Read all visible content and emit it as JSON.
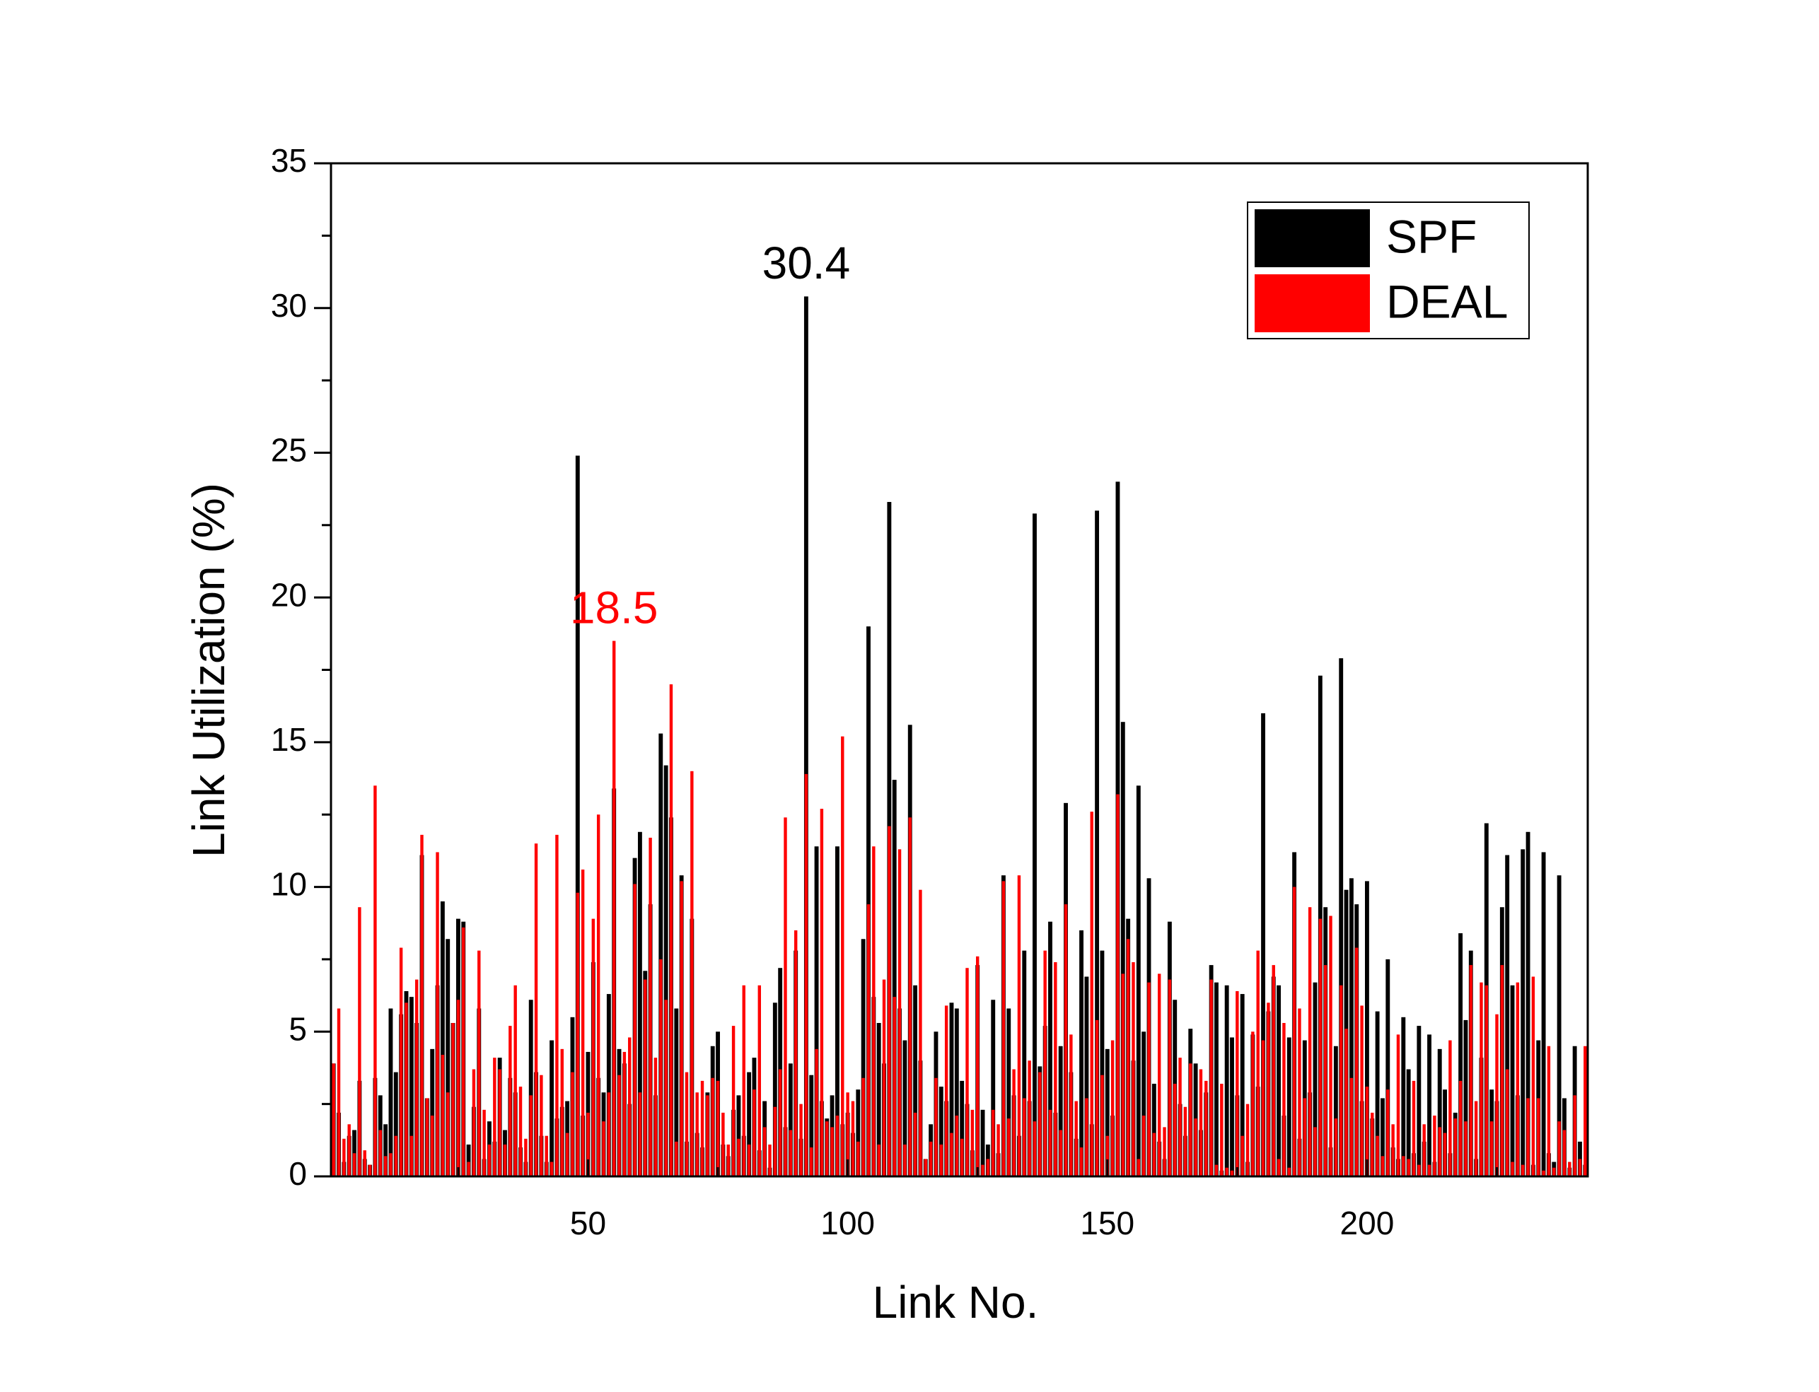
{
  "chart_data": {
    "type": "bar",
    "x_label": "Link No.",
    "y_label": "Link Utilization (%)",
    "xlim": [
      0.5,
      242.5
    ],
    "xticks": [
      50,
      100,
      150,
      200
    ],
    "ylim": [
      0,
      35
    ],
    "yticks": [
      0,
      5,
      10,
      15,
      20,
      25,
      30,
      35
    ],
    "legend": "upper right",
    "series": [
      {
        "name": "SPF",
        "color": "#000000",
        "values": [
          3.9,
          2.2,
          0.5,
          1.4,
          1.6,
          3.3,
          0.6,
          0.4,
          3.4,
          2.8,
          1.8,
          5.8,
          3.6,
          5.6,
          6.4,
          6.2,
          5.3,
          11.1,
          2.7,
          4.4,
          6.6,
          9.5,
          8.2,
          5.3,
          8.9,
          8.8,
          1.1,
          2.4,
          5.8,
          0.6,
          1.9,
          1.2,
          4.1,
          1.6,
          3.4,
          2.9,
          1.0,
          0.5,
          6.1,
          3.6,
          1.4,
          0.5,
          4.7,
          2.0,
          2.4,
          2.6,
          5.5,
          24.9,
          2.1,
          4.3,
          7.4,
          3.4,
          2.9,
          6.3,
          13.4,
          4.4,
          3.9,
          2.5,
          11.0,
          11.9,
          7.1,
          9.4,
          2.8,
          15.3,
          14.2,
          12.4,
          5.8,
          10.4,
          1.2,
          8.9,
          1.5,
          1.0,
          2.9,
          4.5,
          5.0,
          1.1,
          0.7,
          2.3,
          2.8,
          1.4,
          3.6,
          4.1,
          0.9,
          2.6,
          0.3,
          6.0,
          7.2,
          1.7,
          3.9,
          7.8,
          1.3,
          30.4,
          3.5,
          11.4,
          2.6,
          2.0,
          2.8,
          11.4,
          1.8,
          2.2,
          1.5,
          3.0,
          8.2,
          19.0,
          6.2,
          5.3,
          3.9,
          23.3,
          13.7,
          5.8,
          4.7,
          15.6,
          6.6,
          4.0,
          0.6,
          1.8,
          5.0,
          3.1,
          2.6,
          6.0,
          5.8,
          3.3,
          2.5,
          0.9,
          7.3,
          2.3,
          1.1,
          6.1,
          0.8,
          10.4,
          5.8,
          2.8,
          1.4,
          7.8,
          2.6,
          22.9,
          3.8,
          5.2,
          8.8,
          2.2,
          4.5,
          12.9,
          3.6,
          1.3,
          8.5,
          6.9,
          1.8,
          23.0,
          7.8,
          4.4,
          2.1,
          24.0,
          15.7,
          8.9,
          4.0,
          13.5,
          5.0,
          10.3,
          3.2,
          1.2,
          0.6,
          8.8,
          6.1,
          2.5,
          1.4,
          5.1,
          3.9,
          1.6,
          2.9,
          7.3,
          6.7,
          0.2,
          6.6,
          4.8,
          2.8,
          6.3,
          0.5,
          4.9,
          3.1,
          16.0,
          5.7,
          6.9,
          6.6,
          2.1,
          4.8,
          11.2,
          1.3,
          4.7,
          2.9,
          6.7,
          17.3,
          9.3,
          1.0,
          4.5,
          17.9,
          9.9,
          10.3,
          9.4,
          2.6,
          10.2,
          2.0,
          5.7,
          2.7,
          7.5,
          1.0,
          0.6,
          5.5,
          3.7,
          0.8,
          5.2,
          1.2,
          4.9,
          0.5,
          4.4,
          3.0,
          0.8,
          2.2,
          8.4,
          5.4,
          7.8,
          0.6,
          4.1,
          12.2,
          3.0,
          2.6,
          9.3,
          11.1,
          6.6,
          2.8,
          11.3,
          11.9,
          0.4,
          4.7,
          11.2,
          0.8,
          0.5,
          10.4,
          2.7,
          0.3,
          4.5,
          1.2,
          0.4
        ]
      },
      {
        "name": "DEAL",
        "color": "#ff0000",
        "values": [
          3.9,
          5.8,
          1.3,
          1.8,
          0.8,
          9.3,
          0.9,
          0.4,
          13.5,
          1.6,
          0.7,
          0.8,
          1.4,
          7.9,
          6.0,
          1.4,
          6.8,
          11.8,
          2.7,
          2.1,
          11.2,
          4.2,
          2.9,
          5.3,
          6.1,
          8.6,
          0.5,
          3.7,
          7.8,
          2.3,
          1.1,
          4.1,
          3.7,
          1.1,
          5.2,
          6.6,
          3.1,
          1.3,
          2.8,
          11.5,
          3.5,
          1.4,
          0.5,
          11.8,
          4.4,
          1.5,
          3.6,
          9.8,
          10.6,
          2.2,
          8.9,
          12.5,
          1.9,
          2.9,
          18.5,
          3.5,
          4.3,
          4.8,
          10.1,
          2.9,
          6.8,
          11.7,
          4.1,
          7.5,
          6.1,
          17.0,
          1.2,
          10.2,
          3.6,
          14.0,
          2.9,
          3.3,
          2.8,
          3.4,
          3.3,
          2.2,
          1.1,
          5.2,
          1.3,
          6.6,
          1.1,
          3.0,
          6.6,
          1.7,
          1.1,
          2.4,
          3.7,
          12.4,
          1.6,
          8.5,
          2.5,
          13.9,
          1.0,
          4.4,
          12.7,
          1.9,
          1.7,
          2.1,
          15.2,
          2.9,
          2.6,
          1.2,
          3.4,
          9.4,
          11.4,
          1.1,
          6.8,
          12.1,
          6.2,
          11.3,
          1.1,
          12.4,
          2.2,
          9.9,
          0.6,
          1.2,
          3.4,
          1.1,
          5.9,
          1.5,
          2.1,
          1.3,
          7.2,
          2.3,
          7.6,
          0.4,
          0.6,
          2.3,
          1.8,
          10.2,
          2.0,
          3.7,
          10.4,
          2.7,
          4.0,
          1.9,
          3.6,
          7.8,
          2.3,
          7.4,
          1.6,
          9.4,
          4.9,
          2.6,
          1.0,
          2.7,
          12.6,
          5.4,
          3.5,
          1.4,
          4.7,
          13.2,
          7.0,
          8.2,
          7.4,
          0.6,
          2.1,
          6.7,
          1.5,
          7.0,
          1.7,
          6.8,
          3.2,
          4.1,
          2.4,
          3.9,
          2.0,
          3.7,
          3.3,
          6.8,
          0.4,
          3.2,
          0.3,
          0.2,
          6.4,
          1.4,
          2.5,
          5.0,
          7.8,
          4.7,
          6.0,
          7.3,
          0.6,
          5.3,
          0.3,
          10.0,
          5.8,
          2.7,
          9.3,
          1.7,
          8.9,
          7.3,
          9.0,
          2.0,
          6.6,
          5.1,
          3.4,
          7.9,
          5.9,
          3.1,
          2.2,
          1.4,
          0.7,
          3.0,
          1.8,
          4.9,
          0.7,
          0.6,
          3.3,
          0.4,
          1.8,
          0.4,
          2.1,
          1.7,
          1.5,
          4.7,
          2.0,
          3.3,
          1.9,
          7.3,
          2.6,
          6.7,
          6.6,
          1.9,
          5.6,
          7.3,
          3.7,
          0.5,
          6.7,
          0.4,
          2.7,
          6.9,
          2.7,
          0.2,
          4.5,
          0.3,
          1.9,
          1.6,
          0.5,
          2.8,
          0.6,
          4.5
        ]
      }
    ],
    "annotations": [
      {
        "text": "30.4",
        "x": 92,
        "y": 30.4,
        "color": "#000000"
      },
      {
        "text": "18.5",
        "x": 55,
        "y": 18.5,
        "color": "#ff0000"
      }
    ]
  }
}
